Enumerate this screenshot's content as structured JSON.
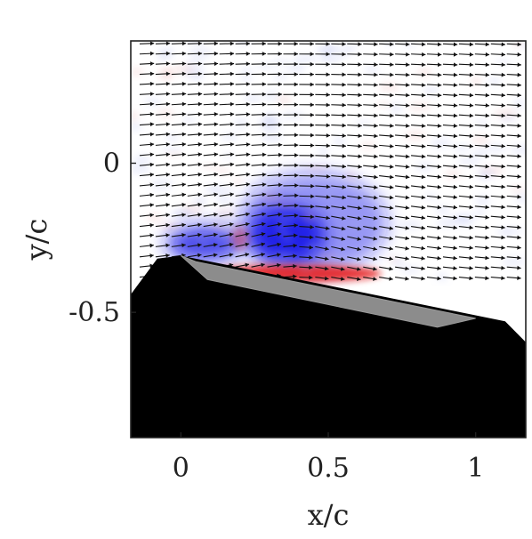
{
  "chart_data": {
    "type": "vector-field",
    "xlabel": "x/c",
    "ylabel": "y/c",
    "xlim": [
      -0.17,
      1.17
    ],
    "ylim": [
      -0.92,
      0.41
    ],
    "x_ticks": [
      {
        "value": 0,
        "label": "0"
      },
      {
        "value": 0.5,
        "label": "0.5"
      },
      {
        "value": 1,
        "label": "1"
      }
    ],
    "y_ticks": [
      {
        "value": 0,
        "label": "0"
      },
      {
        "value": -0.5,
        "label": "-0.5"
      }
    ],
    "grid": false,
    "colormap": {
      "negative": "#1a1ae6",
      "zero": "#ffffff",
      "positive": "#e61a1a"
    },
    "vortex": {
      "x": 0.38,
      "y": -0.24
    },
    "vorticity_regions": [
      {
        "sign": "negative",
        "x": 0.36,
        "y": -0.24,
        "rx": 0.13,
        "ry": 0.1,
        "strength": 0.95
      },
      {
        "sign": "negative",
        "x": 0.45,
        "y": -0.2,
        "rx": 0.25,
        "ry": 0.17,
        "strength": 0.45
      },
      {
        "sign": "negative",
        "x": 0.08,
        "y": -0.27,
        "rx": 0.13,
        "ry": 0.06,
        "strength": 0.8
      },
      {
        "sign": "positive",
        "x": 0.38,
        "y": -0.37,
        "rx": 0.3,
        "ry": 0.03,
        "strength": 0.85
      },
      {
        "sign": "positive",
        "x": 0.2,
        "y": -0.25,
        "rx": 0.03,
        "ry": 0.04,
        "strength": 0.35
      }
    ],
    "body_outline": [
      [
        -0.17,
        -0.44
      ],
      [
        -0.08,
        -0.32
      ],
      [
        0.0,
        -0.31
      ],
      [
        1.1,
        -0.53
      ],
      [
        1.17,
        -0.6
      ],
      [
        1.17,
        -0.92
      ],
      [
        -0.17,
        -0.92
      ]
    ],
    "plate": [
      [
        0.0,
        -0.31
      ],
      [
        0.09,
        -0.39
      ],
      [
        0.87,
        -0.55
      ],
      [
        1.0,
        -0.52
      ],
      [
        0.05,
        -0.33
      ]
    ]
  }
}
